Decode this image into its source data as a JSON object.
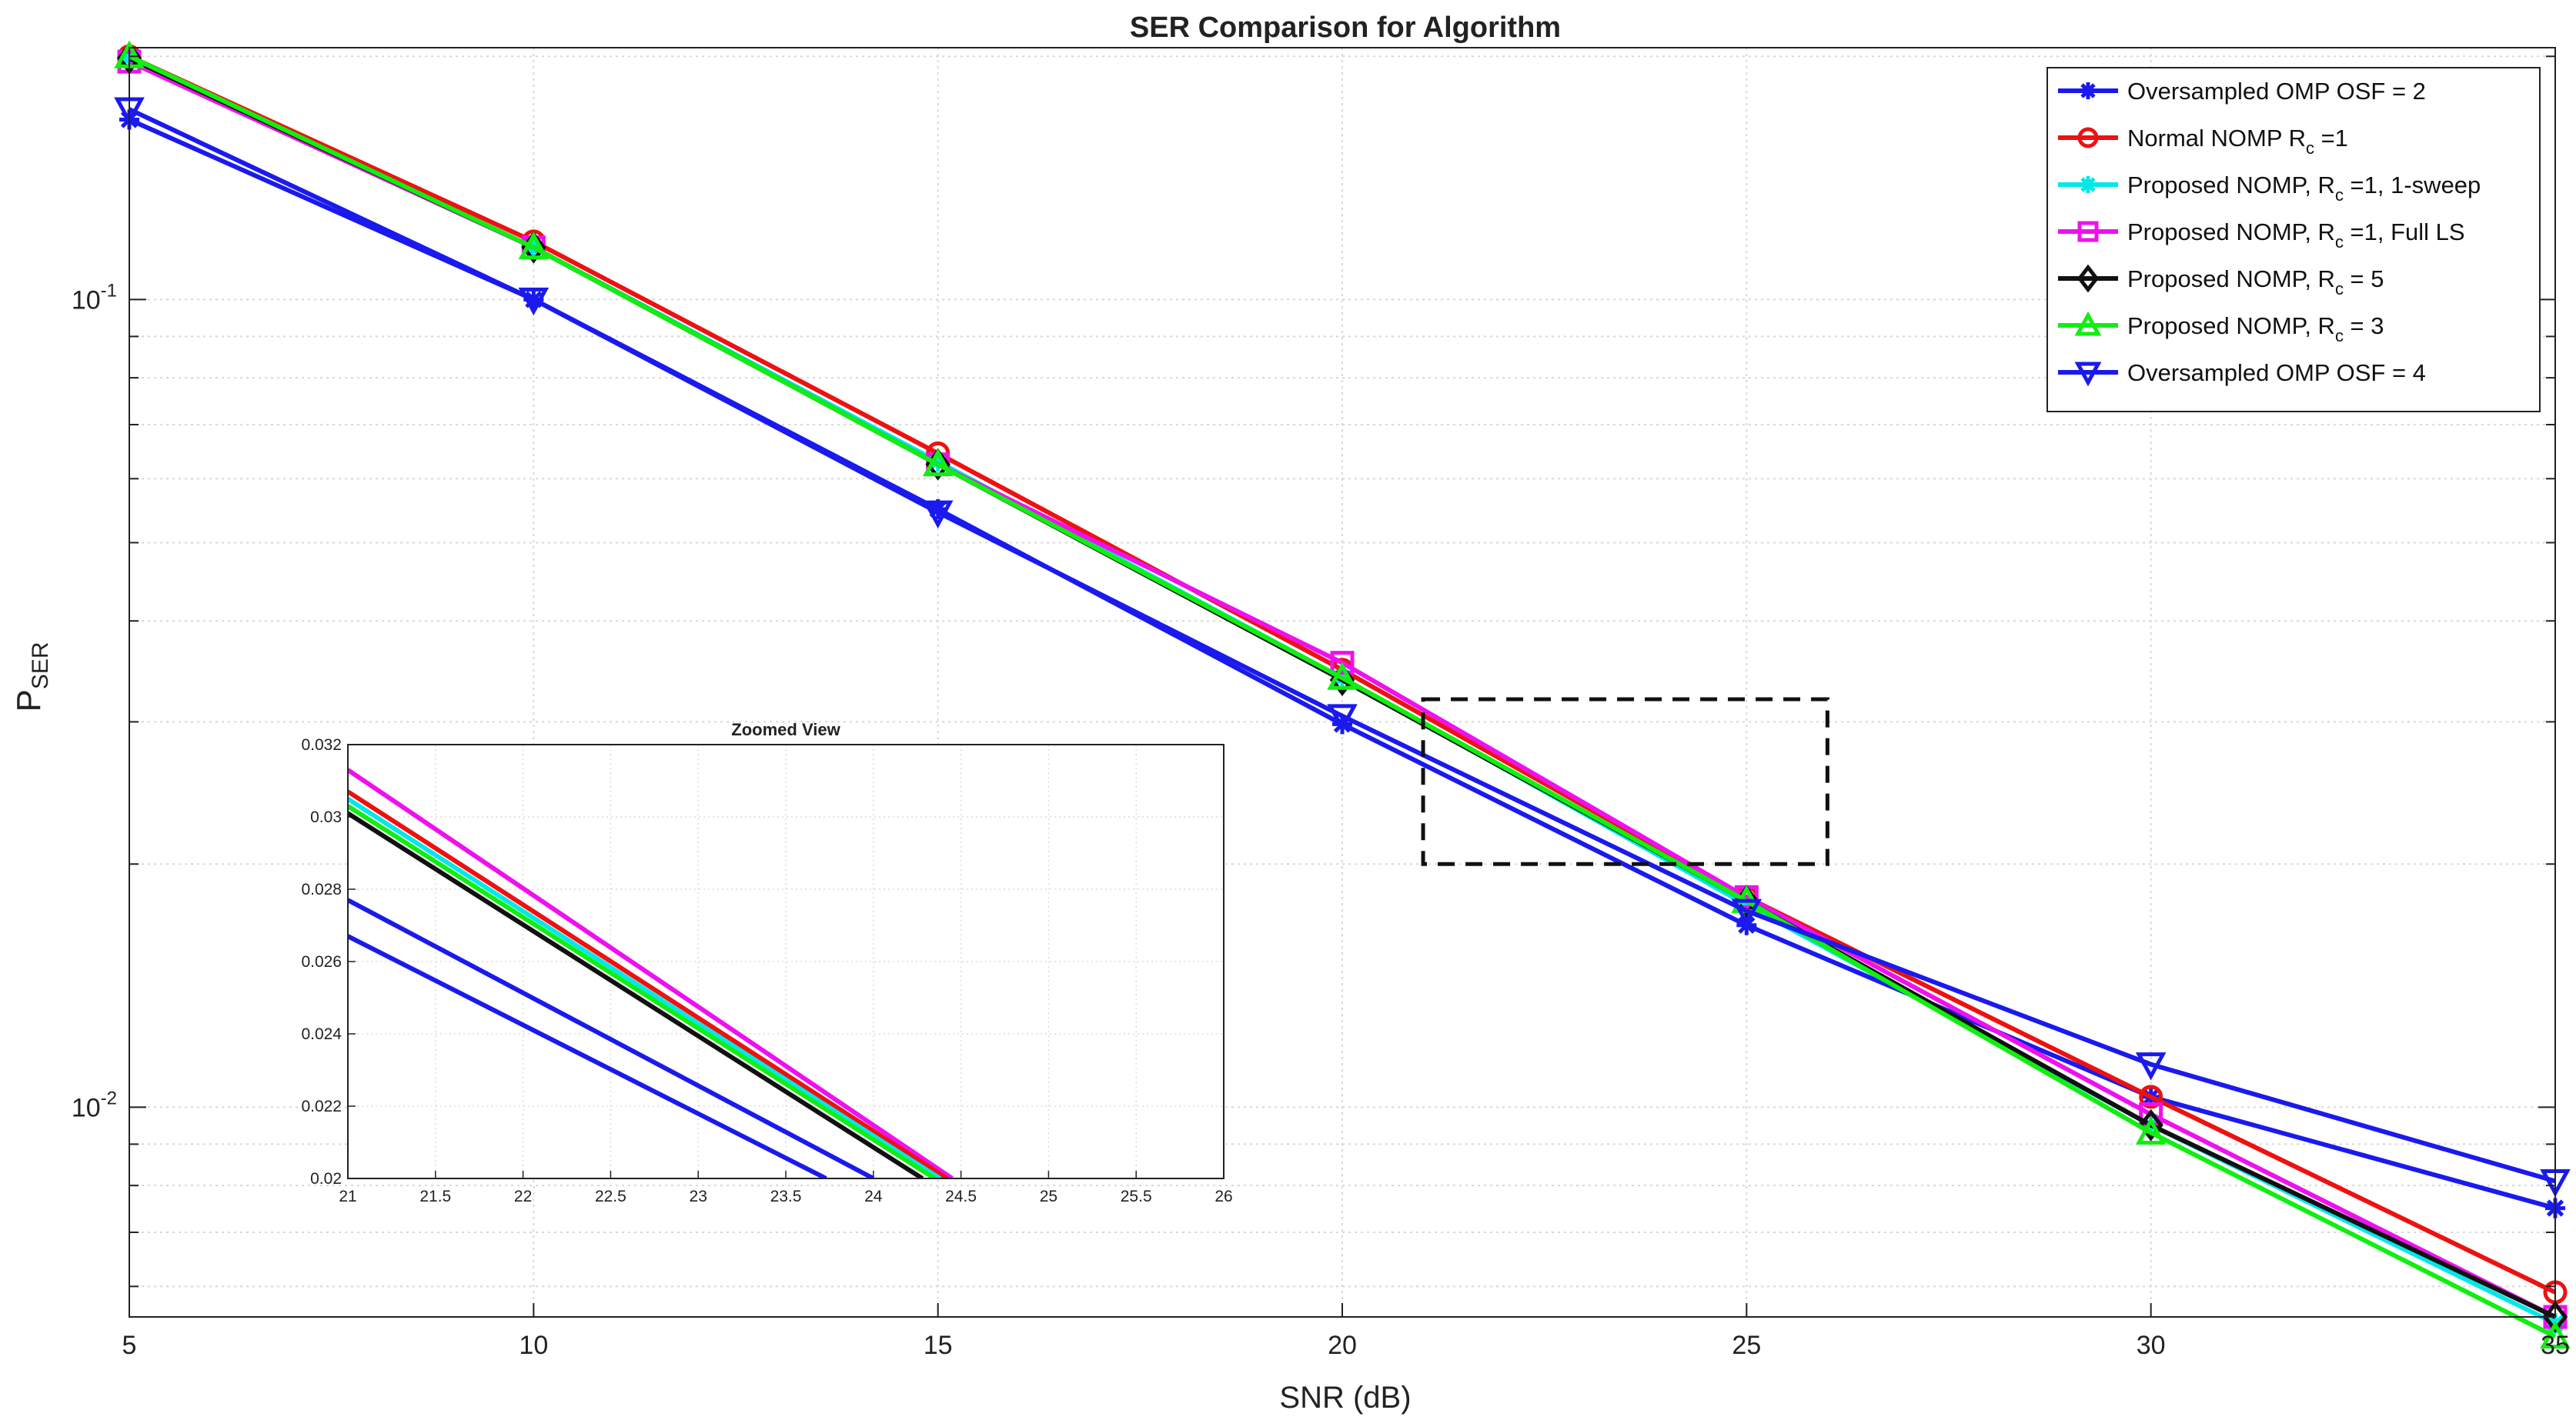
{
  "chart_data": [
    {
      "type": "line",
      "title": "SER Comparison for Algorithm",
      "xlabel": "SNR (dB)",
      "ylabel_main": "P",
      "ylabel_sub": "SER",
      "yscale": "log",
      "xlim": [
        5,
        35
      ],
      "ylim": [
        0.0055,
        0.205
      ],
      "x_ticks": [
        "5",
        "10",
        "15",
        "20",
        "25",
        "30",
        "35"
      ],
      "y_ticks": [
        {
          "base": "10",
          "exp": "-1",
          "value": 0.1
        },
        {
          "base": "10",
          "exp": "-2",
          "value": 0.01
        }
      ],
      "grid": true,
      "legend_position": "top-right",
      "x": [
        5,
        10,
        15,
        20,
        25,
        30,
        35
      ],
      "series": [
        {
          "label_parts": [
            "Oversampled OMP OSF = 2"
          ],
          "color": "#1a1aee",
          "marker": "asterisk",
          "values": [
            0.167,
            0.1,
            0.055,
            0.0298,
            0.0168,
            0.0103,
            0.0075
          ]
        },
        {
          "label_parts": [
            "Normal NOMP R",
            "c",
            " =1"
          ],
          "color": "#ee1111",
          "marker": "circle",
          "values": [
            0.2,
            0.118,
            0.0645,
            0.0348,
            0.0182,
            0.0103,
            0.0059
          ]
        },
        {
          "label_parts": [
            "Proposed NOMP, R",
            "c",
            " =1, 1-sweep"
          ],
          "color": "#00e8e8",
          "marker": "asterisk",
          "values": [
            0.199,
            0.116,
            0.063,
            0.034,
            0.0178,
            0.0095,
            0.0054
          ]
        },
        {
          "label_parts": [
            "Proposed NOMP, R",
            "c",
            " =1, Full LS"
          ],
          "color": "#ee11ee",
          "marker": "square",
          "values": [
            0.197,
            0.116,
            0.0625,
            0.0355,
            0.0182,
            0.0098,
            0.0055
          ]
        },
        {
          "label_parts": [
            "Proposed NOMP, R",
            "c",
            " = 5"
          ],
          "color": "#111111",
          "marker": "diamond",
          "values": [
            0.199,
            0.116,
            0.0625,
            0.0338,
            0.018,
            0.0095,
            0.0055
          ]
        },
        {
          "label_parts": [
            "Proposed NOMP, R",
            "c",
            " = 3"
          ],
          "color": "#11ee11",
          "marker": "triangle-up",
          "values": [
            0.2,
            0.116,
            0.0625,
            0.034,
            0.018,
            0.0093,
            0.0052
          ]
        },
        {
          "label_parts": [
            "Oversampled OMP OSF = 4"
          ],
          "color": "#1a1aee",
          "marker": "triangle-down",
          "values": [
            0.172,
            0.1,
            0.0545,
            0.0305,
            0.0175,
            0.0113,
            0.0081
          ]
        }
      ],
      "zoom_box": {
        "x": [
          21,
          26
        ],
        "y": [
          0.02,
          0.032
        ]
      }
    },
    {
      "type": "line",
      "title": "Zoomed View",
      "xlim": [
        21,
        26
      ],
      "ylim": [
        0.02,
        0.032
      ],
      "x_ticks": [
        "21",
        "21.5",
        "22",
        "22.5",
        "23",
        "23.5",
        "24",
        "24.5",
        "25",
        "25.5",
        "26"
      ],
      "y_ticks": [
        "0.02",
        "0.022",
        "0.024",
        "0.026",
        "0.028",
        "0.03",
        "0.032"
      ],
      "series": [
        {
          "color": "#ee11ee",
          "x": [
            21,
            24.45
          ],
          "values": [
            0.0313,
            0.02
          ]
        },
        {
          "color": "#ee1111",
          "x": [
            21,
            24.42
          ],
          "values": [
            0.0307,
            0.02
          ]
        },
        {
          "color": "#00e8e8",
          "x": [
            21,
            24.38
          ],
          "values": [
            0.0305,
            0.02
          ]
        },
        {
          "color": "#11ee11",
          "x": [
            21,
            24.35
          ],
          "values": [
            0.0303,
            0.02
          ]
        },
        {
          "color": "#111111",
          "x": [
            21,
            24.28
          ],
          "values": [
            0.0301,
            0.02
          ]
        },
        {
          "color": "#1a1aee",
          "x": [
            21,
            24.0
          ],
          "values": [
            0.0277,
            0.02
          ]
        },
        {
          "color": "#1a1aee",
          "x": [
            21,
            23.73
          ],
          "values": [
            0.0267,
            0.02
          ]
        }
      ]
    }
  ]
}
